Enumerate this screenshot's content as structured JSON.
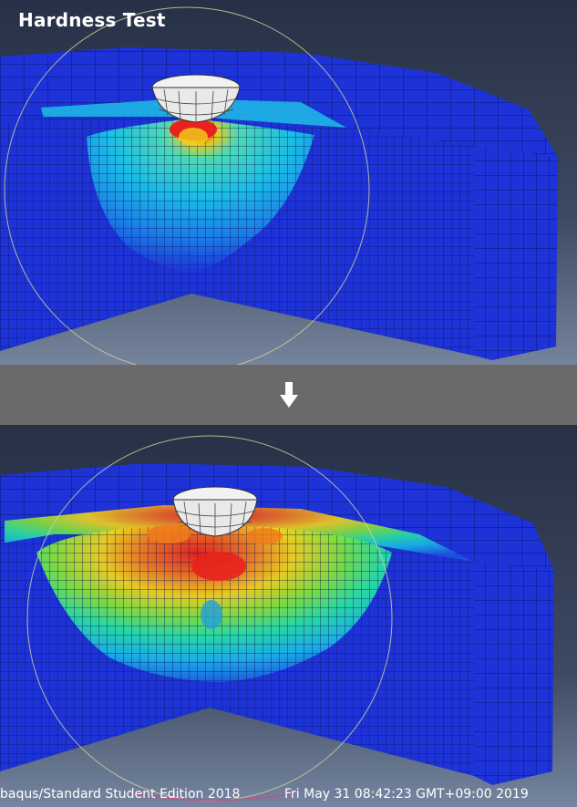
{
  "title": "Hardness Test",
  "footer": {
    "edition": "baqus/Standard Student Edition 2018",
    "timestamp": "Fri May 31 08:42:23 GMT+09:00 2019"
  },
  "icons": {
    "divider": "arrow-down-icon"
  },
  "colors": {
    "background_dark": "#2a3448",
    "background_light": "#6d7d96",
    "mesh_blue": "#1d33d8",
    "divider_gray": "#6a6a6a",
    "contour_hot": "#e8221c",
    "contour_warm": "#f1d21a",
    "contour_mid": "#4fe23c",
    "contour_cool": "#1fbde6"
  }
}
